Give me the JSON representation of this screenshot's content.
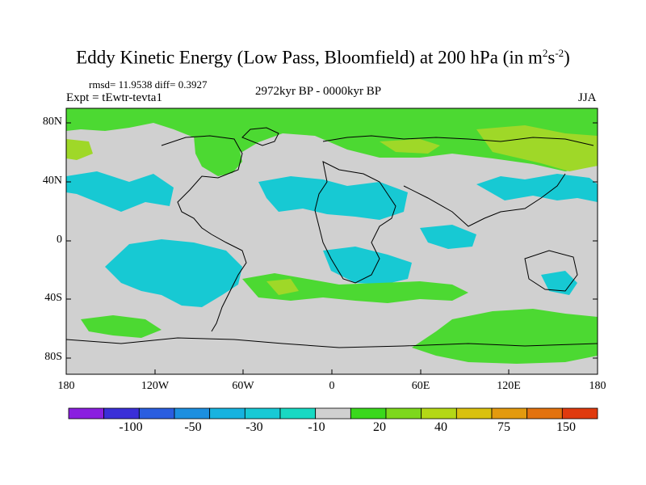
{
  "title": {
    "main": "Eddy Kinetic Energy (Low Pass, Bloomfield) at 200 hPa (in m",
    "sup1": "2",
    "mid": "s",
    "sup2": "-2",
    "end": ")"
  },
  "stats_text": "rmsd= 11.9538 diff= 0.3927",
  "experiment_text": "Expt = tEwtr-tevta1",
  "period_text": "2972kyr BP - 0000kyr BP",
  "season_text": "JJA",
  "map": {
    "y_tick_labels": [
      "80N",
      "40N",
      "0",
      "40S",
      "80S"
    ],
    "x_tick_labels": [
      "180",
      "120W",
      "60W",
      "0",
      "60E",
      "120E",
      "180"
    ],
    "background_color": "#d0d0d0"
  },
  "colorbar": {
    "labels": [
      "-100",
      "-50",
      "-30",
      "-10",
      "20",
      "40",
      "75",
      "150"
    ],
    "colors": [
      "#8a1fe0",
      "#3a2fd8",
      "#2a5ee0",
      "#1c8fe0",
      "#17b3e0",
      "#18c9d5",
      "#18d9c3",
      "#d0d0d0",
      "#3ad81c",
      "#7dd81c",
      "#b4d816",
      "#dac10e",
      "#e39a0e",
      "#e3720e",
      "#e03a0e"
    ]
  },
  "colors": {
    "blue_area": "#17c9d3",
    "green_area": "#4cd932",
    "yellowgreen_area": "#9fd828"
  }
}
